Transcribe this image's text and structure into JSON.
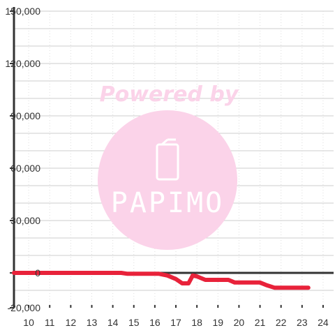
{
  "watermark": {
    "top_text": "Powered by",
    "logo_text": "PAPIMO",
    "color": "#fbd3e9"
  },
  "chart_data": {
    "type": "line",
    "title": "",
    "xlabel": "",
    "ylabel": "",
    "xlim": [
      9.3,
      24.5
    ],
    "ylim": [
      -20000,
      150000
    ],
    "x_ticks": [
      10,
      11,
      12,
      13,
      14,
      15,
      16,
      17,
      18,
      19,
      20,
      21,
      22,
      23,
      24
    ],
    "y_ticks": [
      -20000,
      0,
      30000,
      60000,
      90000,
      120000,
      150000
    ],
    "y_tick_labels": [
      "-20,000",
      "0",
      "30,000",
      "60,000",
      "90,000",
      "120,000",
      "150,000"
    ],
    "grid": true,
    "legend": "none",
    "series": [
      {
        "color": "#e8223a",
        "points": [
          [
            9.3,
            0
          ],
          [
            10,
            0
          ],
          [
            11,
            0
          ],
          [
            12,
            0
          ],
          [
            13,
            0
          ],
          [
            14,
            0
          ],
          [
            14.4,
            0
          ],
          [
            14.7,
            -500
          ],
          [
            15.5,
            -500
          ],
          [
            16.2,
            -500
          ],
          [
            16.6,
            -1500
          ],
          [
            17,
            -3500
          ],
          [
            17.3,
            -6000
          ],
          [
            17.6,
            -6000
          ],
          [
            17.8,
            -1500
          ],
          [
            18,
            -2000
          ],
          [
            18.4,
            -4000
          ],
          [
            19,
            -4000
          ],
          [
            19.5,
            -4000
          ],
          [
            19.8,
            -5500
          ],
          [
            20.5,
            -5500
          ],
          [
            21,
            -5500
          ],
          [
            21.3,
            -7000
          ],
          [
            21.7,
            -8500
          ],
          [
            22.5,
            -8500
          ],
          [
            23,
            -8500
          ],
          [
            23.3,
            -8500
          ]
        ]
      }
    ],
    "colors": {
      "axis": "#333333",
      "grid_major": "#cccccc",
      "grid_minor": "#dddddd",
      "line": "#e8223a"
    }
  }
}
